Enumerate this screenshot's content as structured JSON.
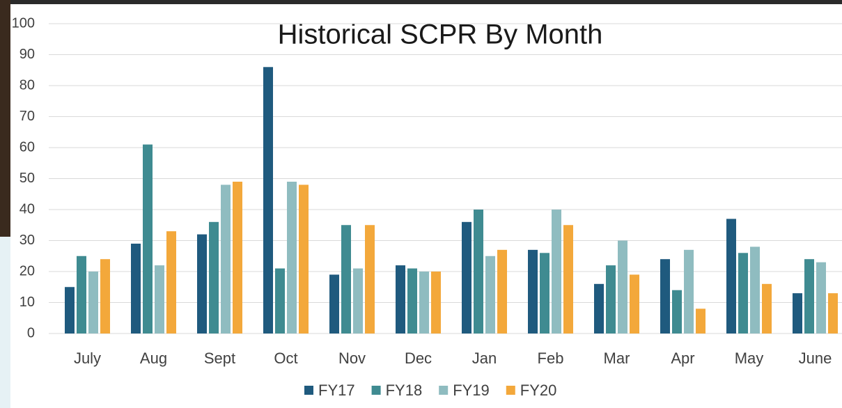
{
  "chart_data": {
    "type": "bar",
    "title": "Historical SCPR By Month",
    "categories": [
      "July",
      "Aug",
      "Sept",
      "Oct",
      "Nov",
      "Dec",
      "Jan",
      "Feb",
      "Mar",
      "Apr",
      "May",
      "June"
    ],
    "series": [
      {
        "name": "FY17",
        "color": "#1f5a7e",
        "values": [
          15,
          29,
          32,
          86,
          19,
          22,
          36,
          27,
          16,
          24,
          37,
          13
        ]
      },
      {
        "name": "FY18",
        "color": "#3f8b91",
        "values": [
          25,
          61,
          36,
          21,
          35,
          21,
          40,
          26,
          22,
          14,
          26,
          24
        ]
      },
      {
        "name": "FY19",
        "color": "#8fbcc0",
        "values": [
          20,
          22,
          48,
          49,
          21,
          20,
          25,
          40,
          30,
          27,
          28,
          23
        ]
      },
      {
        "name": "FY20",
        "color": "#f3a83b",
        "values": [
          24,
          33,
          49,
          48,
          35,
          20,
          27,
          35,
          19,
          8,
          16,
          13
        ]
      }
    ],
    "ylim": [
      0,
      100
    ],
    "yticks": [
      0,
      10,
      20,
      30,
      40,
      50,
      60,
      70,
      80,
      90,
      100
    ],
    "grid": true,
    "legend": "bottom"
  }
}
